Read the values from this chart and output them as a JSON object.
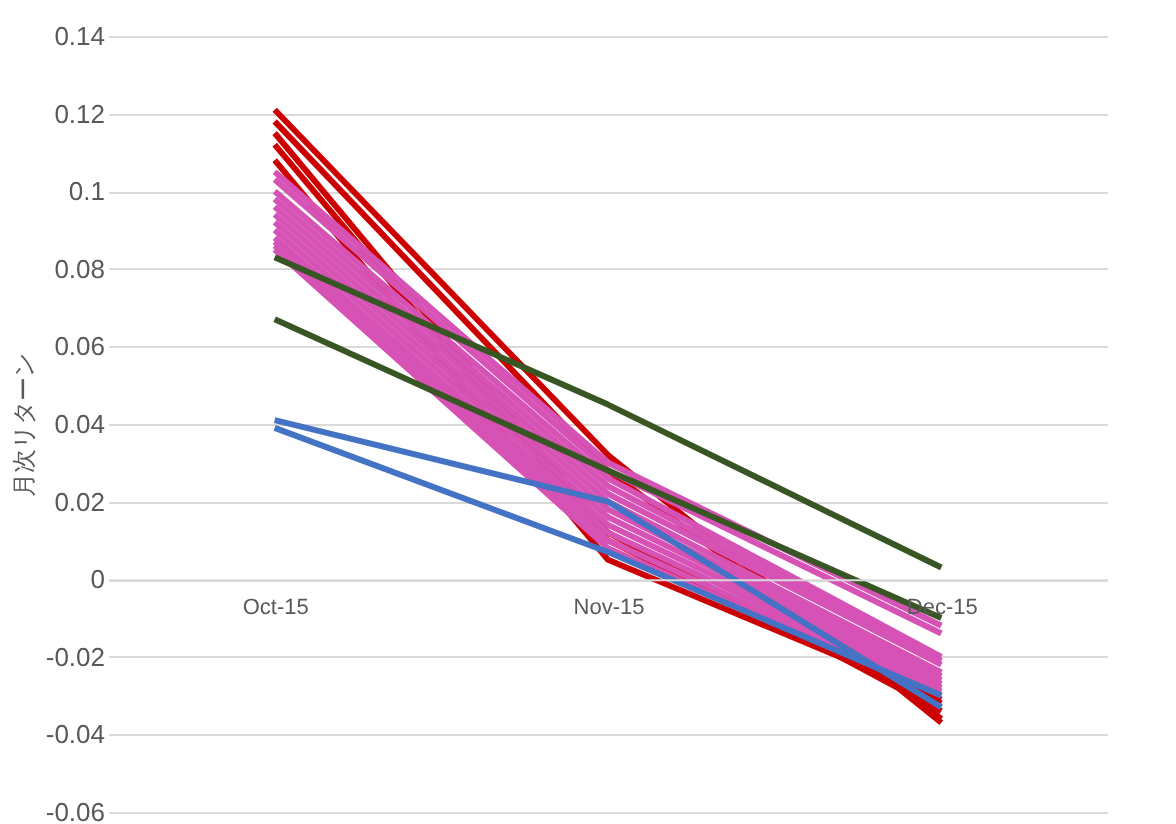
{
  "chart_data": {
    "type": "line",
    "ylabel": "月次リターン",
    "categories": [
      "Oct-15",
      "Nov-15",
      "Dec-15"
    ],
    "ylim": [
      -0.06,
      0.14
    ],
    "yticks": [
      -0.06,
      -0.04,
      -0.02,
      0,
      0.02,
      0.04,
      0.06,
      0.08,
      0.1,
      0.12,
      0.14
    ],
    "grid": "y",
    "legend": false,
    "marker": "none",
    "line_style": "solid",
    "series": [
      {
        "color": "#cc0000",
        "values": [
          0.121,
          0.032,
          -0.037
        ]
      },
      {
        "color": "#cc0000",
        "values": [
          0.118,
          0.028,
          -0.036
        ]
      },
      {
        "color": "#cc0000",
        "values": [
          0.115,
          0.012,
          -0.034
        ]
      },
      {
        "color": "#cc0000",
        "values": [
          0.112,
          0.01,
          -0.032
        ]
      },
      {
        "color": "#cc0000",
        "values": [
          0.108,
          0.005,
          -0.031
        ]
      },
      {
        "color": "#d652b5",
        "values": [
          0.105,
          0.03,
          -0.012
        ]
      },
      {
        "color": "#d652b5",
        "values": [
          0.103,
          0.028,
          -0.014
        ]
      },
      {
        "color": "#d652b5",
        "values": [
          0.1,
          0.026,
          -0.02
        ]
      },
      {
        "color": "#d652b5",
        "values": [
          0.098,
          0.024,
          -0.021
        ]
      },
      {
        "color": "#d652b5",
        "values": [
          0.096,
          0.022,
          -0.022
        ]
      },
      {
        "color": "#d652b5",
        "values": [
          0.094,
          0.02,
          -0.024
        ]
      },
      {
        "color": "#d652b5",
        "values": [
          0.092,
          0.018,
          -0.025
        ]
      },
      {
        "color": "#d652b5",
        "values": [
          0.09,
          0.016,
          -0.026
        ]
      },
      {
        "color": "#d652b5",
        "values": [
          0.088,
          0.014,
          -0.027
        ]
      },
      {
        "color": "#d652b5",
        "values": [
          0.087,
          0.012,
          -0.028
        ]
      },
      {
        "color": "#d652b5",
        "values": [
          0.086,
          0.01,
          -0.029
        ]
      },
      {
        "color": "#d652b5",
        "values": [
          0.085,
          0.008,
          -0.03
        ]
      },
      {
        "color": "#375623",
        "values": [
          0.083,
          0.045,
          0.003
        ]
      },
      {
        "color": "#375623",
        "values": [
          0.067,
          0.028,
          -0.01
        ]
      },
      {
        "color": "#4472c4",
        "values": [
          0.041,
          0.02,
          -0.033
        ]
      },
      {
        "color": "#4472c4",
        "values": [
          0.039,
          0.007,
          -0.03
        ]
      }
    ]
  }
}
